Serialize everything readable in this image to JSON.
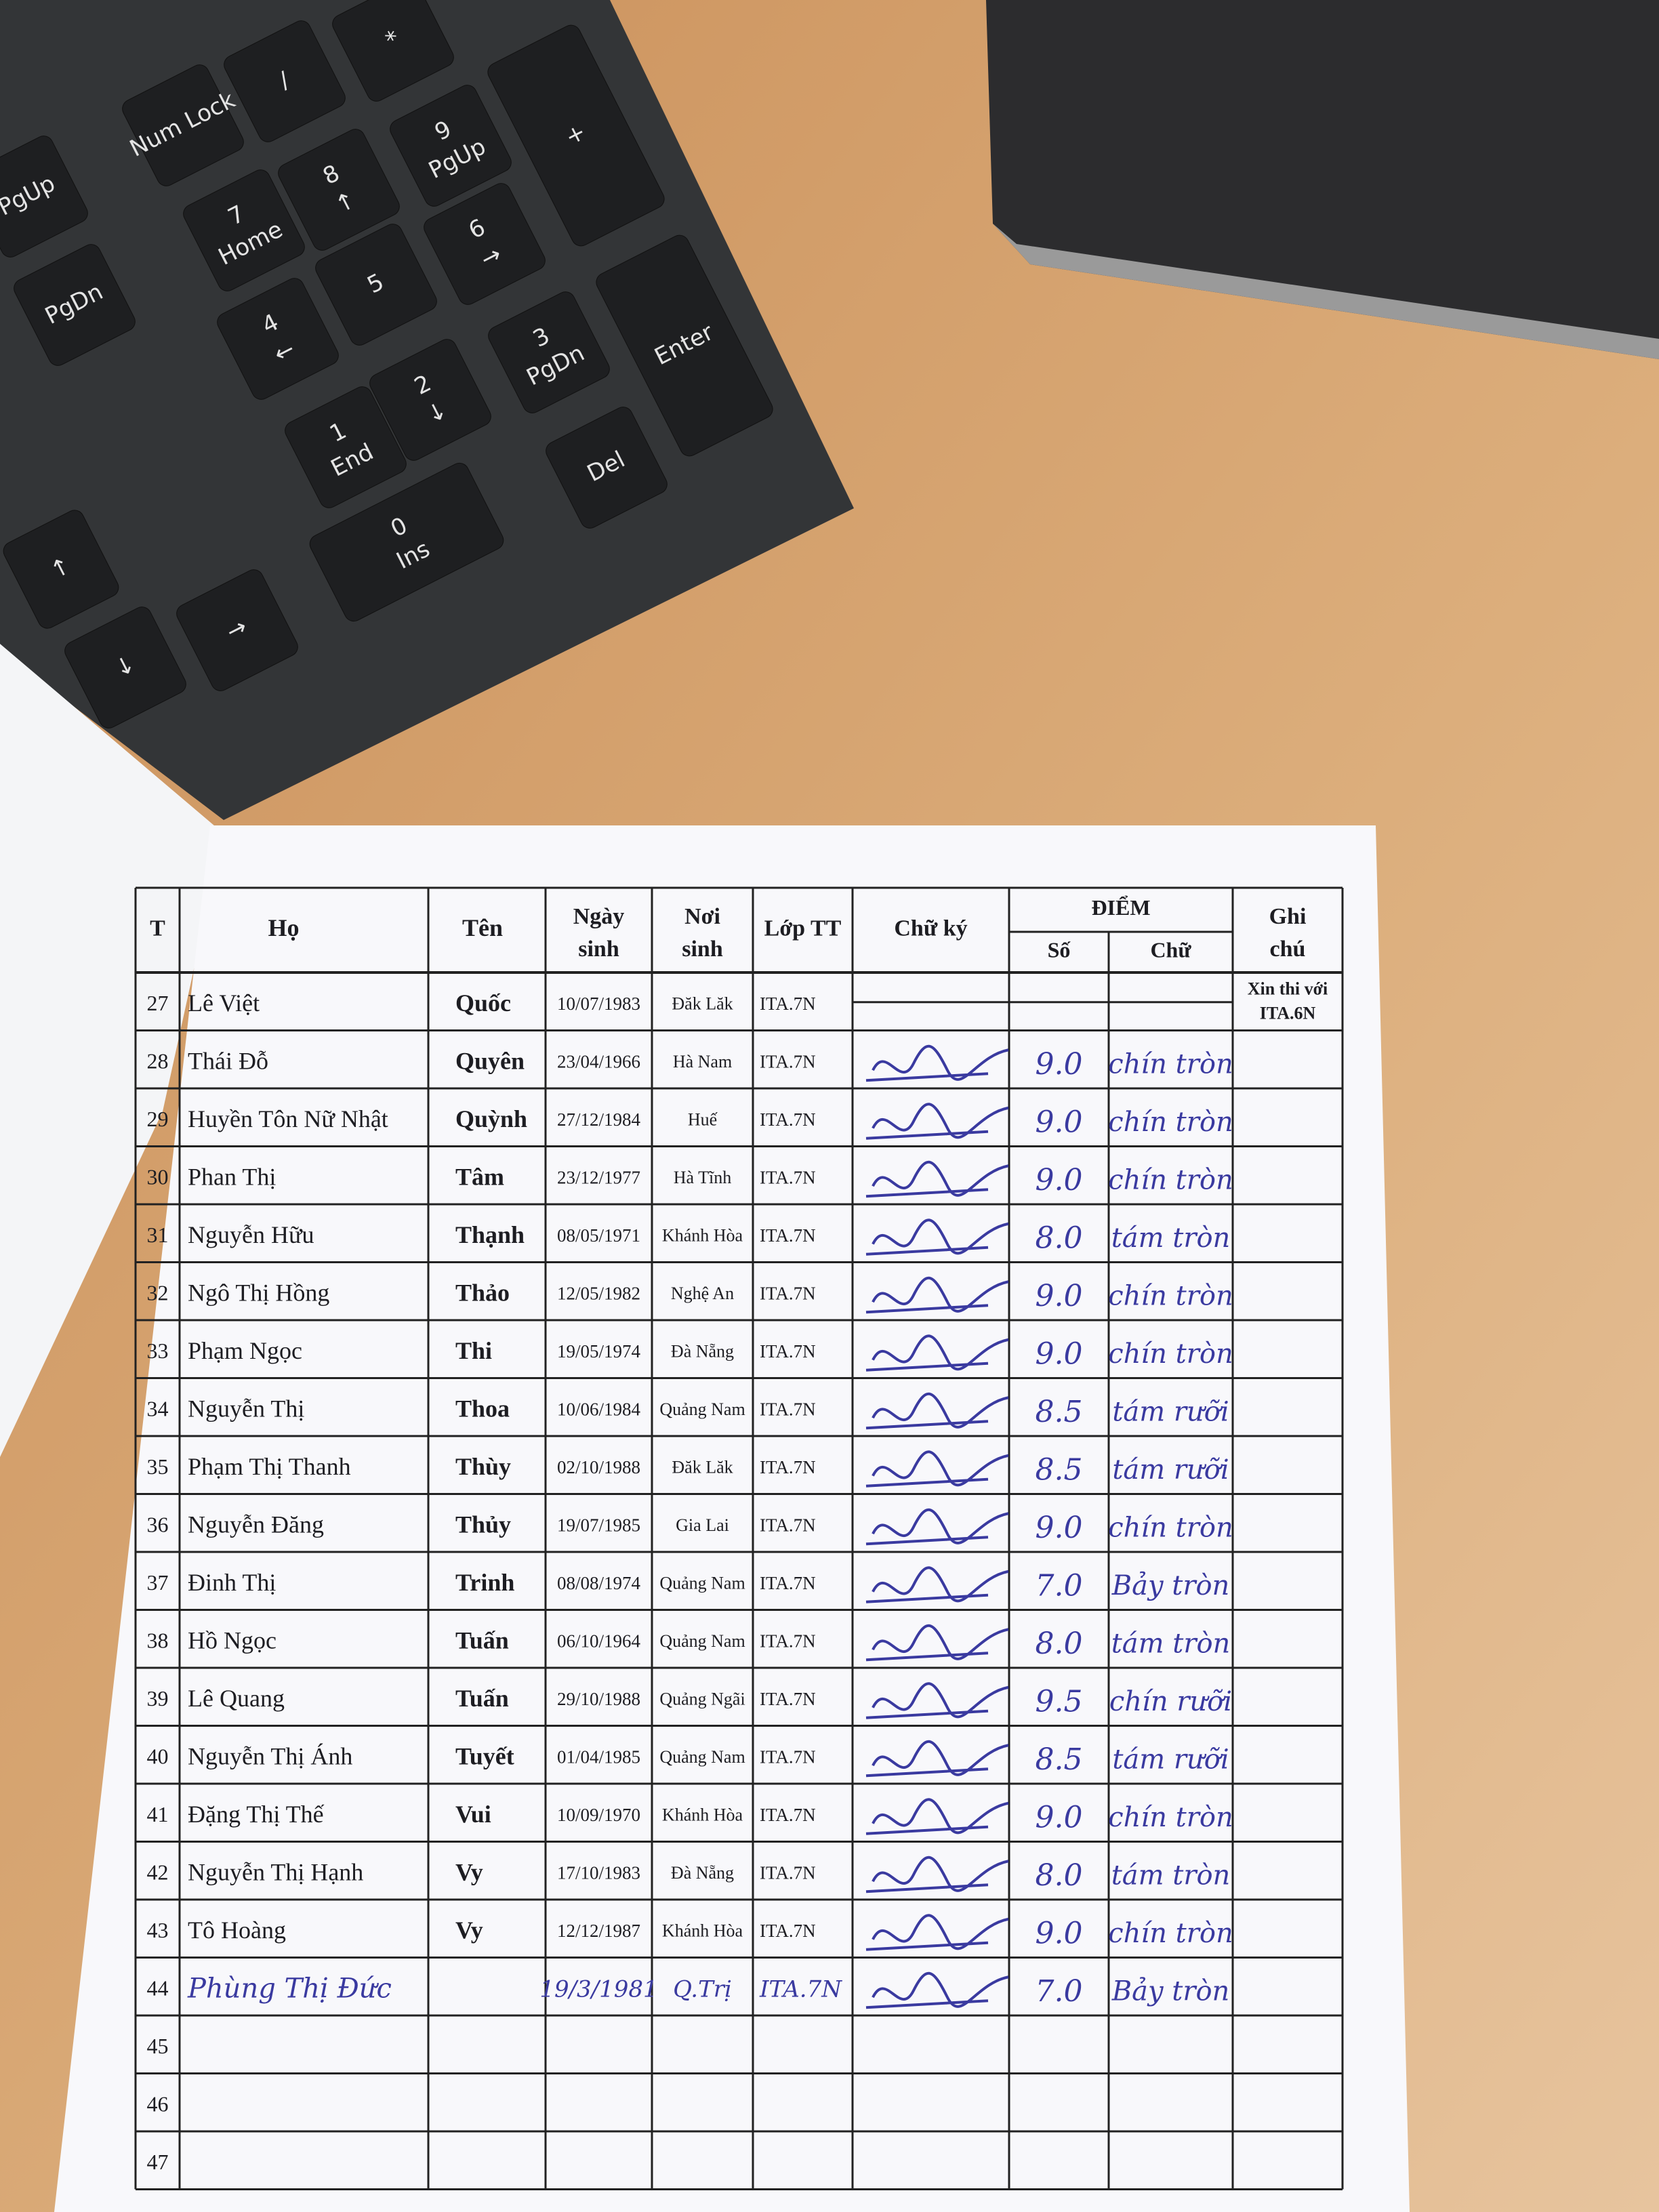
{
  "keyboard": {
    "keys": [
      "Num Lock",
      "/",
      "*",
      "7",
      "Home",
      "8",
      "↑",
      "9",
      "PgUp",
      "+",
      "4",
      "←",
      "5",
      "6",
      "→",
      "1",
      "End",
      "2",
      "↓",
      "3",
      "PgDn",
      "Enter",
      "0",
      "Ins",
      "Del",
      "PgUp",
      "PgDn",
      "↑",
      "↓",
      "→"
    ]
  },
  "header": {
    "stt": "T",
    "ho": "Họ",
    "ten": "Tên",
    "dob": [
      "Ngày",
      "sinh"
    ],
    "place": [
      "Nơi",
      "sinh"
    ],
    "class": "Lớp TT",
    "sign": "Chữ ký",
    "score": "ĐIỂM",
    "score_num": "Số",
    "score_words": "Chữ",
    "note": [
      "Ghi",
      "chú"
    ]
  },
  "rows": [
    {
      "no": 27,
      "ho": "Lê Việt",
      "ten": "Quốc",
      "dob": "10/07/1983",
      "place": "Đăk Lăk",
      "class": "ITA.7N",
      "note": [
        "Xin thi với",
        "ITA.6N"
      ]
    },
    {
      "no": 28,
      "ho": "Thái Đỗ",
      "ten": "Quyên",
      "dob": "23/04/1966",
      "place": "Hà Nam",
      "class": "ITA.7N",
      "score": "9.0",
      "score_words": "chín tròn"
    },
    {
      "no": 29,
      "ho": "Huyền Tôn Nữ Nhật",
      "ten": "Quỳnh",
      "dob": "27/12/1984",
      "place": "Huế",
      "class": "ITA.7N",
      "score": "9.0",
      "score_words": "chín tròn"
    },
    {
      "no": 30,
      "ho": "Phan Thị",
      "ten": "Tâm",
      "dob": "23/12/1977",
      "place": "Hà Tĩnh",
      "class": "ITA.7N",
      "score": "9.0",
      "score_words": "chín tròn"
    },
    {
      "no": 31,
      "ho": "Nguyễn Hữu",
      "ten": "Thạnh",
      "dob": "08/05/1971",
      "place": "Khánh Hòa",
      "class": "ITA.7N",
      "score": "8.0",
      "score_words": "tám tròn"
    },
    {
      "no": 32,
      "ho": "Ngô Thị Hồng",
      "ten": "Thảo",
      "dob": "12/05/1982",
      "place": "Nghệ An",
      "class": "ITA.7N",
      "score": "9.0",
      "score_words": "chín tròn"
    },
    {
      "no": 33,
      "ho": "Phạm Ngọc",
      "ten": "Thi",
      "dob": "19/05/1974",
      "place": "Đà Nẵng",
      "class": "ITA.7N",
      "score": "9.0",
      "score_words": "chín tròn"
    },
    {
      "no": 34,
      "ho": "Nguyễn Thị",
      "ten": "Thoa",
      "dob": "10/06/1984",
      "place": "Quảng Nam",
      "class": "ITA.7N",
      "score": "8.5",
      "score_words": "tám rưỡi"
    },
    {
      "no": 35,
      "ho": "Phạm Thị Thanh",
      "ten": "Thùy",
      "dob": "02/10/1988",
      "place": "Đăk Lăk",
      "class": "ITA.7N",
      "score": "8.5",
      "score_words": "tám rưỡi"
    },
    {
      "no": 36,
      "ho": "Nguyễn Đăng",
      "ten": "Thủy",
      "dob": "19/07/1985",
      "place": "Gia Lai",
      "class": "ITA.7N",
      "score": "9.0",
      "score_words": "chín tròn"
    },
    {
      "no": 37,
      "ho": "Đinh Thị",
      "ten": "Trinh",
      "dob": "08/08/1974",
      "place": "Quảng Nam",
      "class": "ITA.7N",
      "score": "7.0",
      "score_words": "Bảy tròn"
    },
    {
      "no": 38,
      "ho": "Hồ Ngọc",
      "ten": "Tuấn",
      "dob": "06/10/1964",
      "place": "Quảng Nam",
      "class": "ITA.7N",
      "score": "8.0",
      "score_words": "tám tròn"
    },
    {
      "no": 39,
      "ho": "Lê Quang",
      "ten": "Tuấn",
      "dob": "29/10/1988",
      "place": "Quảng Ngãi",
      "class": "ITA.7N",
      "score": "9.5",
      "score_words": "chín rưỡi"
    },
    {
      "no": 40,
      "ho": "Nguyễn Thị Ánh",
      "ten": "Tuyết",
      "dob": "01/04/1985",
      "place": "Quảng Nam",
      "class": "ITA.7N",
      "score": "8.5",
      "score_words": "tám rưỡi"
    },
    {
      "no": 41,
      "ho": "Đặng Thị Thế",
      "ten": "Vui",
      "dob": "10/09/1970",
      "place": "Khánh Hòa",
      "class": "ITA.7N",
      "score": "9.0",
      "score_words": "chín tròn"
    },
    {
      "no": 42,
      "ho": "Nguyễn Thị Hạnh",
      "ten": "Vy",
      "dob": "17/10/1983",
      "place": "Đà Nẵng",
      "class": "ITA.7N",
      "score": "8.0",
      "score_words": "tám tròn"
    },
    {
      "no": 43,
      "ho": "Tô Hoàng",
      "ten": "Vy",
      "dob": "12/12/1987",
      "place": "Khánh Hòa",
      "class": "ITA.7N",
      "score": "9.0",
      "score_words": "chín tròn"
    },
    {
      "no": 44,
      "ho": "Phùng Thị Đức",
      "dob": "19/3/1981",
      "place": "Q.Trị",
      "class": "ITA.7N",
      "score": "7.0",
      "score_words": "Bảy tròn",
      "handwritten": true
    },
    {
      "no": 45
    },
    {
      "no": 46
    },
    {
      "no": 47
    }
  ]
}
